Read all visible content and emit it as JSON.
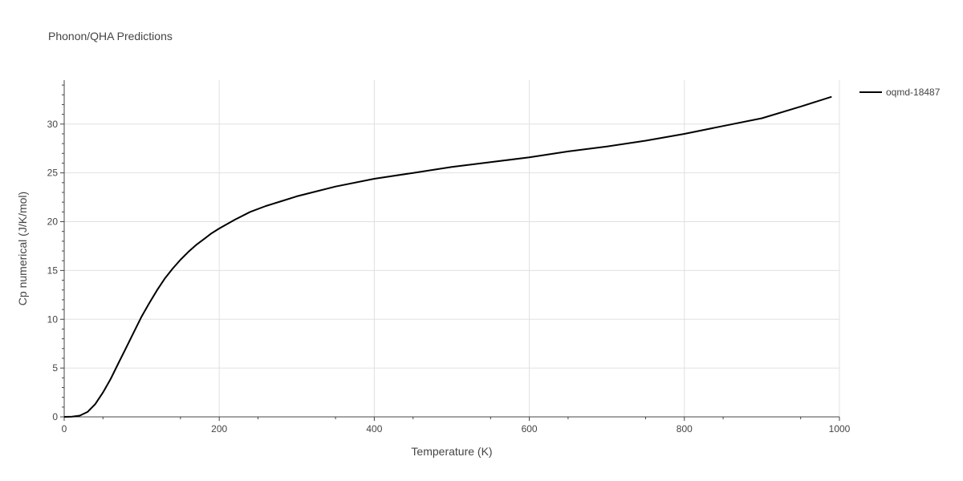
{
  "chart_data": {
    "type": "line",
    "title": "Phonon/QHA Predictions",
    "xlabel": "Temperature (K)",
    "ylabel": "Cp numerical (J/K/mol)",
    "xlim": [
      0,
      1000
    ],
    "ylim": [
      0,
      34.5
    ],
    "x_ticks": [
      "0",
      "200",
      "400",
      "600",
      "800",
      "1000"
    ],
    "y_ticks": [
      "0",
      "5",
      "10",
      "15",
      "20",
      "25",
      "30"
    ],
    "grid": true,
    "legend_position": "top-right",
    "series": [
      {
        "name": "oqmd-18487",
        "color": "#000000",
        "x": [
          0,
          10,
          20,
          30,
          40,
          50,
          60,
          70,
          80,
          90,
          100,
          110,
          120,
          130,
          140,
          150,
          160,
          170,
          180,
          190,
          200,
          220,
          240,
          260,
          280,
          300,
          320,
          350,
          400,
          450,
          500,
          550,
          600,
          650,
          700,
          750,
          800,
          850,
          900,
          950,
          990
        ],
        "y": [
          0,
          0.02,
          0.12,
          0.5,
          1.3,
          2.5,
          3.9,
          5.5,
          7.1,
          8.7,
          10.3,
          11.7,
          13.0,
          14.2,
          15.2,
          16.1,
          16.9,
          17.6,
          18.2,
          18.8,
          19.3,
          20.2,
          21.0,
          21.6,
          22.1,
          22.6,
          23.0,
          23.6,
          24.4,
          25.0,
          25.6,
          26.1,
          26.6,
          27.2,
          27.7,
          28.3,
          29.0,
          29.8,
          30.6,
          31.8,
          32.8
        ]
      }
    ]
  }
}
